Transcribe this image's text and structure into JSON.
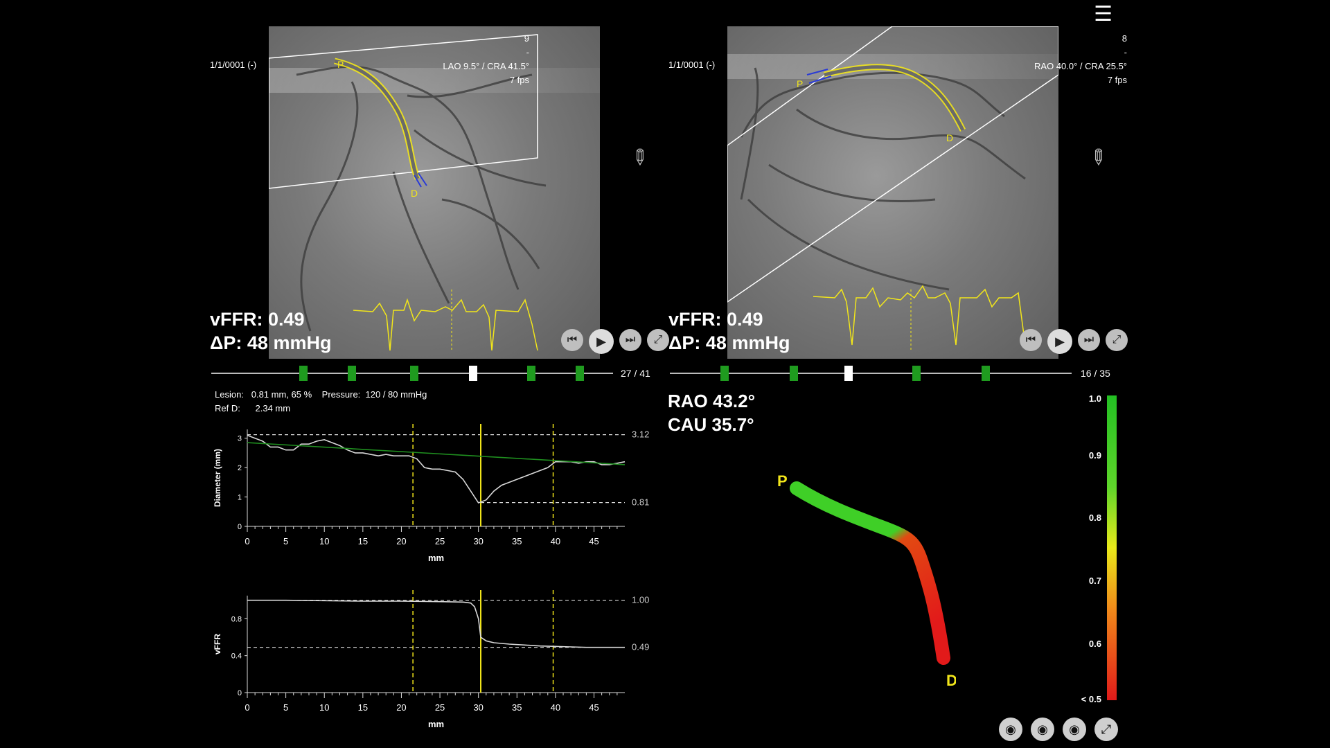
{
  "colors": {
    "accent_yellow": "#f2e61a",
    "vessel_blue": "#2a3bd6",
    "timeline_green": "#1f9b1f"
  },
  "menu_icon": "menu-icon",
  "left_view": {
    "date": "1/1/0001 (-)",
    "frame_num": "9",
    "dash": "-",
    "angle": "LAO 9.5° / CRA 41.5°",
    "fps": "7 fps",
    "vffr": "vFFR: 0.49",
    "dp": "ΔP: 48 mmHg",
    "counter": "27 /  41",
    "markers": [
      "P",
      "D"
    ]
  },
  "right_view": {
    "date": "1/1/0001 (-)",
    "frame_num": "8",
    "dash": "-",
    "angle": "RAO 40.0° / CRA 25.5°",
    "fps": "7 fps",
    "vffr": "vFFR: 0.49",
    "dp": "ΔP: 48 mmHg",
    "counter": "16 /  35",
    "markers": [
      "P",
      "D"
    ]
  },
  "lesion": {
    "lesion_label": "Lesion:",
    "lesion_value": "0.81 mm, 65 %",
    "pressure_label": "Pressure:",
    "pressure_value": "120 / 80 mmHg",
    "refd_label": "Ref D:",
    "refd_value": "2.34 mm"
  },
  "model": {
    "angle1": "RAO 43.2°",
    "angle2": "CAU 35.7°",
    "p_label": "P",
    "d_label": "D"
  },
  "colorbar": {
    "labels": [
      "1.0",
      "0.9",
      "0.8",
      "0.7",
      "0.6",
      "< 0.5"
    ]
  },
  "chart_data": [
    {
      "type": "line",
      "ylabel": "Diameter (mm)",
      "xlabel": "mm",
      "xlim": [
        0,
        49
      ],
      "ylim": [
        0,
        3.3
      ],
      "x_ticks": [
        "0",
        "5",
        "10",
        "15",
        "20",
        "25",
        "30",
        "35",
        "40",
        "45"
      ],
      "y_ticks": [
        "0",
        "1",
        "2",
        "3"
      ],
      "ref_lines": [
        {
          "value": 3.12,
          "label": "3.12"
        },
        {
          "value": 0.81,
          "label": "0.81"
        }
      ],
      "markers_x": [
        21.5,
        30.3,
        39.7
      ],
      "series": [
        {
          "x": [
            0,
            1,
            2,
            3,
            4,
            5,
            6,
            7,
            8,
            9,
            10,
            11,
            12,
            13,
            14,
            15,
            16,
            17,
            18,
            19,
            20,
            21,
            22,
            23,
            24,
            25,
            26,
            27,
            28,
            29,
            30,
            31,
            32,
            33,
            34,
            35,
            36,
            37,
            38,
            39,
            40,
            41,
            42,
            43,
            44,
            45,
            46,
            47,
            48,
            49
          ],
          "values": [
            3.1,
            3.0,
            2.9,
            2.7,
            2.7,
            2.6,
            2.6,
            2.8,
            2.8,
            2.9,
            2.95,
            2.85,
            2.75,
            2.6,
            2.5,
            2.5,
            2.45,
            2.4,
            2.45,
            2.4,
            2.4,
            2.4,
            2.3,
            2.0,
            1.95,
            1.95,
            1.9,
            1.85,
            1.6,
            1.2,
            0.8,
            0.9,
            1.2,
            1.4,
            1.5,
            1.6,
            1.7,
            1.8,
            1.9,
            2.0,
            2.2,
            2.2,
            2.2,
            2.15,
            2.2,
            2.2,
            2.1,
            2.1,
            2.15,
            2.2
          ]
        },
        {
          "x": [
            0,
            49
          ],
          "values": [
            2.85,
            2.1
          ]
        }
      ]
    },
    {
      "type": "line",
      "ylabel": "vFFR",
      "xlabel": "mm",
      "xlim": [
        0,
        49
      ],
      "ylim": [
        0,
        1.05
      ],
      "x_ticks": [
        "0",
        "5",
        "10",
        "15",
        "20",
        "25",
        "30",
        "35",
        "40",
        "45"
      ],
      "y_ticks": [
        "0",
        "0.4",
        "0.8"
      ],
      "ref_lines": [
        {
          "value": 1.0,
          "label": "1.00"
        },
        {
          "value": 0.49,
          "label": "0.49"
        }
      ],
      "markers_x": [
        21.5,
        30.3,
        39.7
      ],
      "series": [
        {
          "x": [
            0,
            5,
            10,
            15,
            20,
            25,
            28,
            29,
            29.5,
            30,
            30.3,
            31,
            32,
            34,
            36,
            38,
            40,
            42,
            44,
            46,
            49
          ],
          "values": [
            1.0,
            1.0,
            0.995,
            0.99,
            0.99,
            0.985,
            0.98,
            0.97,
            0.93,
            0.8,
            0.6,
            0.56,
            0.54,
            0.525,
            0.515,
            0.505,
            0.5,
            0.495,
            0.49,
            0.49,
            0.49
          ]
        }
      ]
    }
  ]
}
